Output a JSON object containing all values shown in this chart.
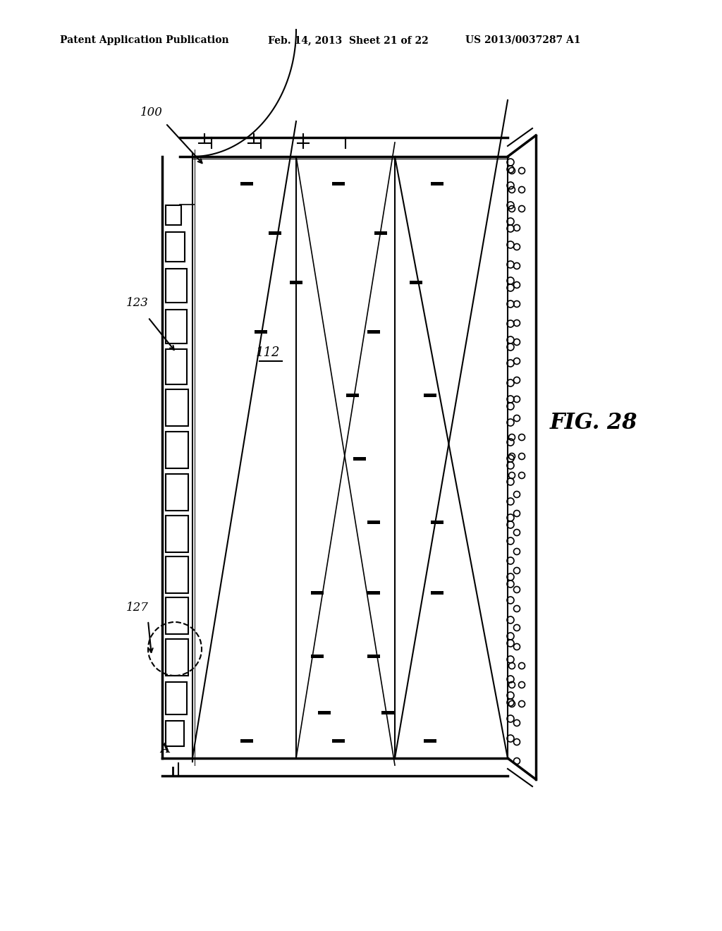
{
  "title_left": "Patent Application Publication",
  "title_mid": "Feb. 14, 2013  Sheet 21 of 22",
  "title_right": "US 2013/0037287 A1",
  "fig_label": "FIG. 28",
  "ref_100": "100",
  "ref_112": "112",
  "ref_123": "123",
  "ref_127": "127",
  "label_A": "A",
  "bg_color": "#ffffff",
  "line_color": "#000000",
  "line_width": 1.5,
  "thick_line": 2.5
}
